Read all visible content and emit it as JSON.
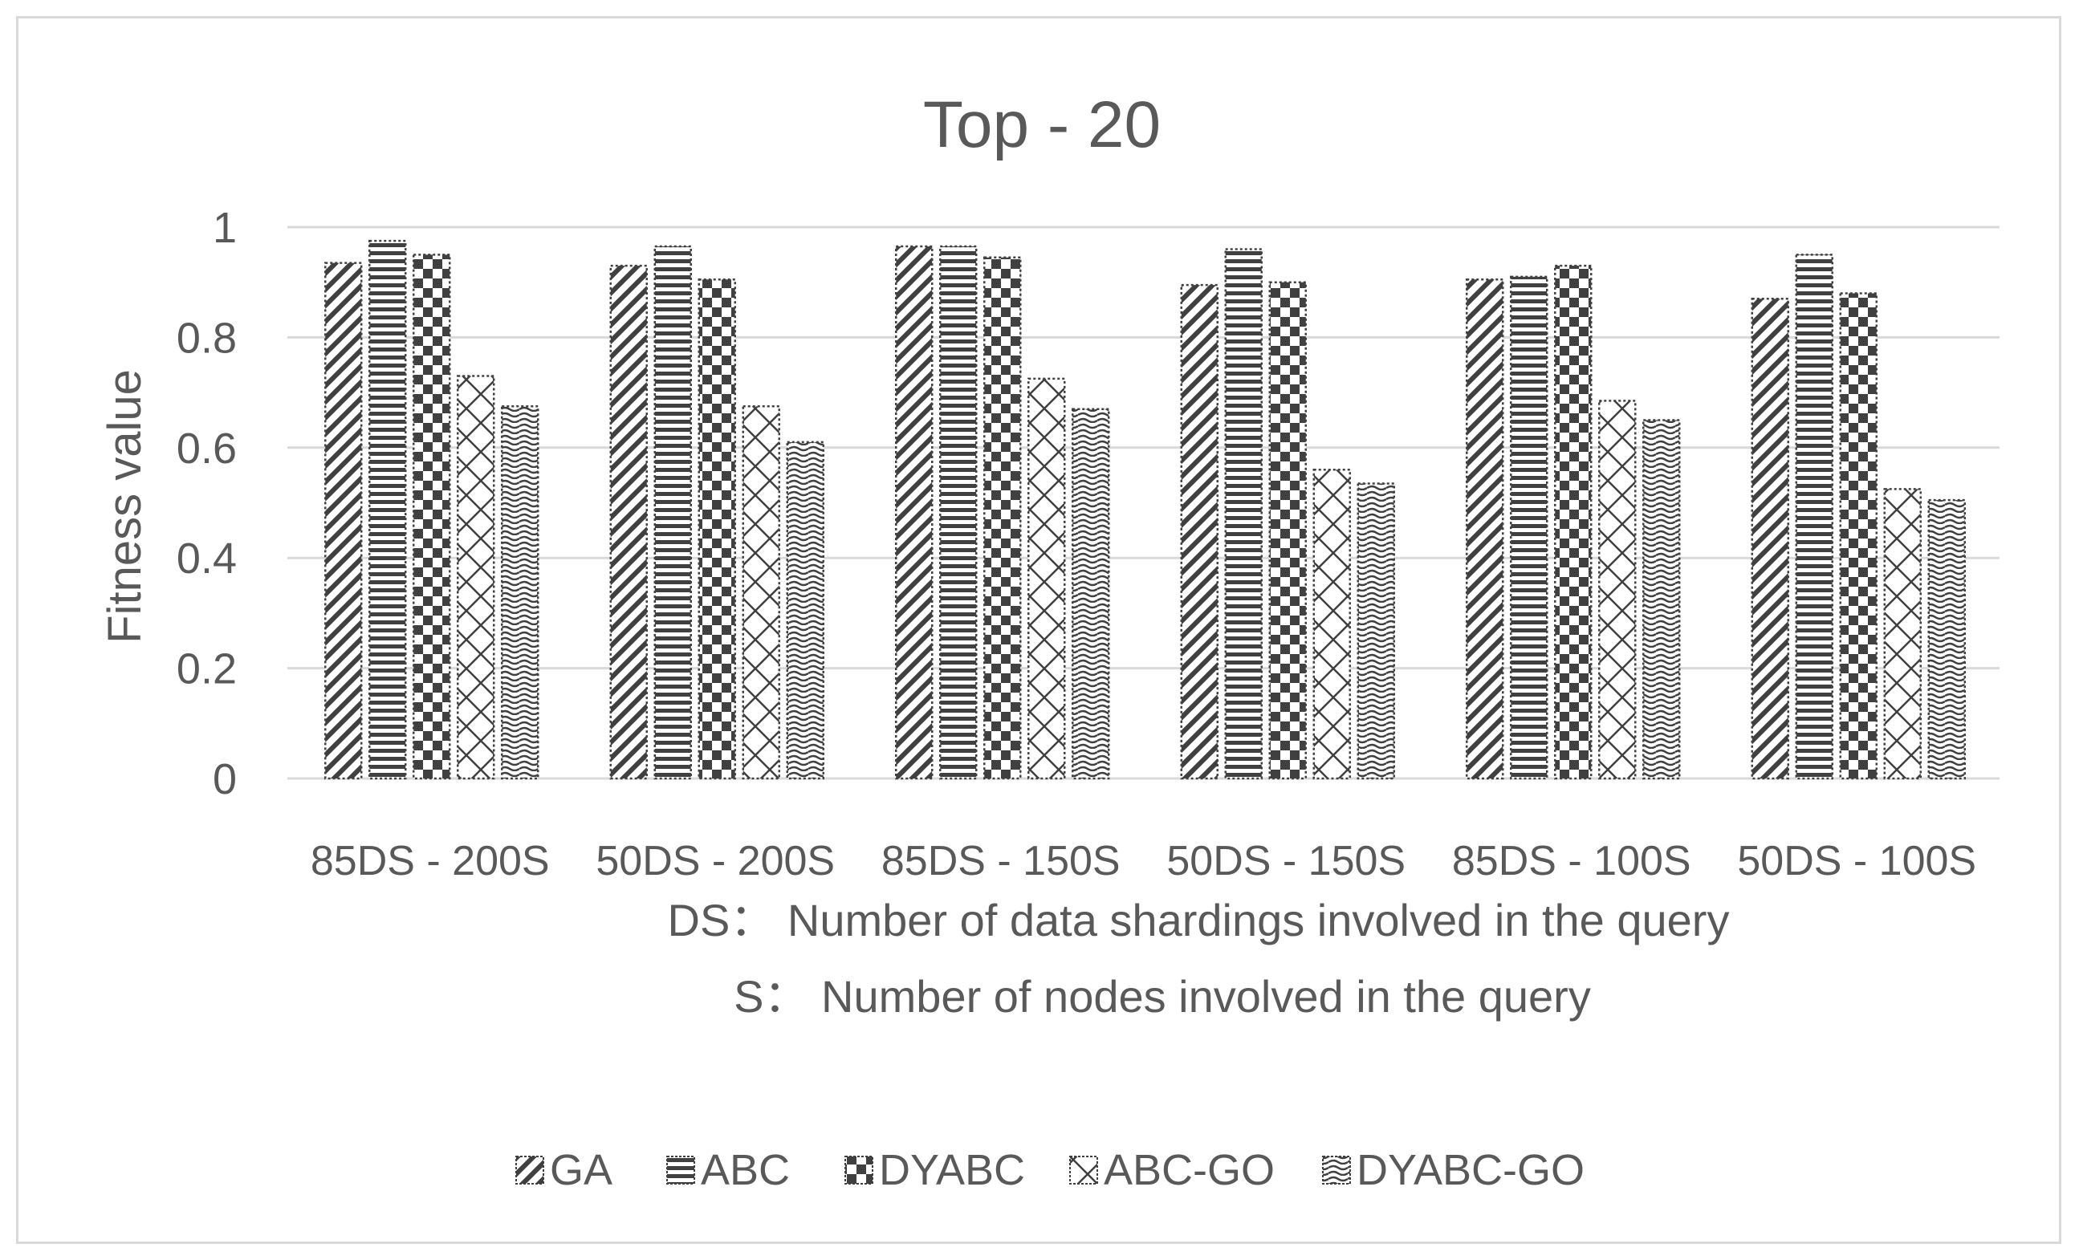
{
  "chart_data": {
    "type": "bar",
    "title": "Top - 20",
    "ylabel": "Fitness value",
    "xlabel_lines": [
      "DS：  Number of data shardings involved in the query",
      "S：  Number of nodes involved in the query"
    ],
    "categories": [
      "85DS - 200S",
      "50DS - 200S",
      "85DS - 150S",
      "50DS - 150S",
      "85DS - 100S",
      "50DS - 100S"
    ],
    "ylim": [
      0,
      1
    ],
    "yticks": [
      "0",
      "0.2",
      "0.4",
      "0.6",
      "0.8",
      "1"
    ],
    "ytick_values": [
      0,
      0.2,
      0.4,
      0.6,
      0.8,
      1
    ],
    "grid": true,
    "legend_position": "bottom",
    "series": [
      {
        "name": "GA",
        "pattern": "diagonal",
        "values": [
          0.935,
          0.93,
          0.965,
          0.895,
          0.905,
          0.87
        ]
      },
      {
        "name": "ABC",
        "pattern": "horizontal",
        "values": [
          0.975,
          0.965,
          0.965,
          0.96,
          0.91,
          0.95
        ]
      },
      {
        "name": "DYABC",
        "pattern": "checker",
        "values": [
          0.95,
          0.905,
          0.945,
          0.9,
          0.93,
          0.88
        ]
      },
      {
        "name": "ABC-GO",
        "pattern": "diamond",
        "values": [
          0.73,
          0.675,
          0.725,
          0.56,
          0.685,
          0.525
        ]
      },
      {
        "name": "DYABC-GO",
        "pattern": "wave",
        "values": [
          0.675,
          0.61,
          0.67,
          0.535,
          0.65,
          0.505
        ]
      }
    ],
    "colors": {
      "bar_ink": "#404040",
      "grid": "#d9d9d9",
      "text": "#595959"
    }
  }
}
